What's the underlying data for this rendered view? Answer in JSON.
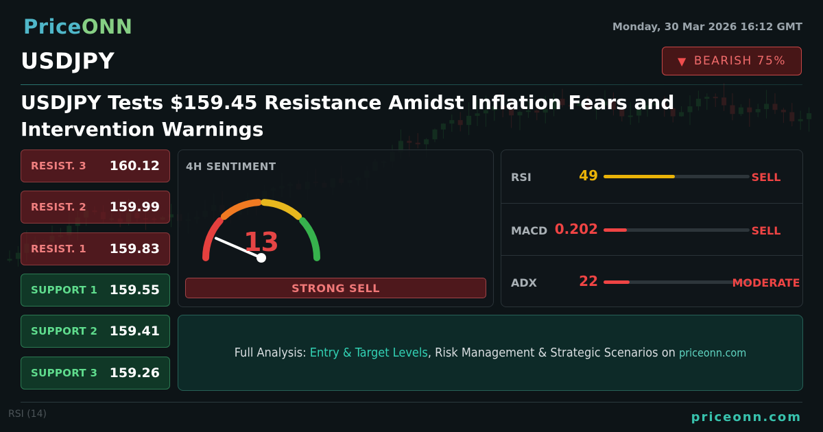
{
  "brand": {
    "part1": "Price",
    "part2": "ONN"
  },
  "datetime": "Monday, 30 Mar 2026 16:12 GMT",
  "symbol": "USDJPY",
  "badge": {
    "icon": "triangle-down-icon",
    "label": "BEARISH 75%"
  },
  "headline": "USDJPY Tests $159.45 Resistance Amidst Inflation Fears and Intervention Warnings",
  "levels": [
    {
      "label": "RESIST. 3",
      "value": "160.12",
      "type": "resistance"
    },
    {
      "label": "RESIST. 2",
      "value": "159.99",
      "type": "resistance"
    },
    {
      "label": "RESIST. 1",
      "value": "159.83",
      "type": "resistance"
    },
    {
      "label": "SUPPORT 1",
      "value": "159.55",
      "type": "support"
    },
    {
      "label": "SUPPORT 2",
      "value": "159.41",
      "type": "support"
    },
    {
      "label": "SUPPORT 3",
      "value": "159.26",
      "type": "support"
    }
  ],
  "sentiment": {
    "title": "4H SENTIMENT",
    "score": "13",
    "score_value": 13,
    "verdict": "STRONG SELL",
    "gauge_colors": [
      "#e5403e",
      "#f07a22",
      "#e8b81e",
      "#37b24d"
    ]
  },
  "indicators": [
    {
      "name": "RSI",
      "value": "49",
      "level": 0.49,
      "signal": "SELL",
      "value_color": "#eab308",
      "bar_color": "#eab308",
      "signal_color": "#ef4444"
    },
    {
      "name": "MACD",
      "value": "0.202",
      "level": 0.16,
      "signal": "SELL",
      "value_color": "#ef4444",
      "bar_color": "#ef4444",
      "signal_color": "#ef4444"
    },
    {
      "name": "ADX",
      "value": "22",
      "level": 0.18,
      "signal": "MODERATE",
      "value_color": "#ef4444",
      "bar_color": "#ef4444",
      "signal_color": "#ef4444"
    }
  ],
  "cta": {
    "prefix": "Full Analysis: ",
    "highlight": "Entry & Target Levels",
    "middle": ", Risk Management & Strategic Scenarios on ",
    "domain": "priceonn.com"
  },
  "footer": "priceonn.com",
  "background_label": "RSI (14)",
  "colors": {
    "accent": "#38c2ad",
    "bearish": "#ef4444",
    "bullish": "#5fdc8d"
  }
}
